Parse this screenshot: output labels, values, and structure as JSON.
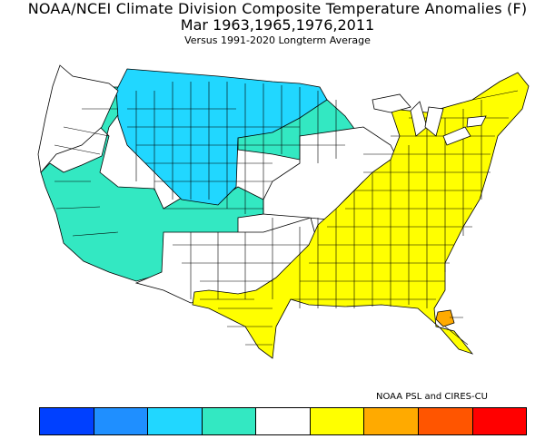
{
  "title_line1": "NOAA/NCEI Climate Division Composite Temperature Anomalies (F)",
  "title_line2": "Mar  1963,1965,1976,2011",
  "subtitle": "Versus 1991-2020 Longterm Average",
  "credit": "NOAA PSL and CIRES-CU",
  "region_colors": {
    "dark_blue": "#0040ff",
    "mid_blue": "#1f8fff",
    "cyan": "#21d7ff",
    "aqua": "#33e8c2",
    "white": "#ffffff",
    "yellow": "#ffff00",
    "orange_light": "#ffaa00",
    "orange_dark": "#ff5500",
    "red": "#ff0000"
  },
  "colorbar": {
    "colors": [
      "#0040ff",
      "#1f8fff",
      "#21d7ff",
      "#33e8c2",
      "#ffffff",
      "#ffff00",
      "#ffaa00",
      "#ff5500",
      "#ff0000"
    ]
  }
}
